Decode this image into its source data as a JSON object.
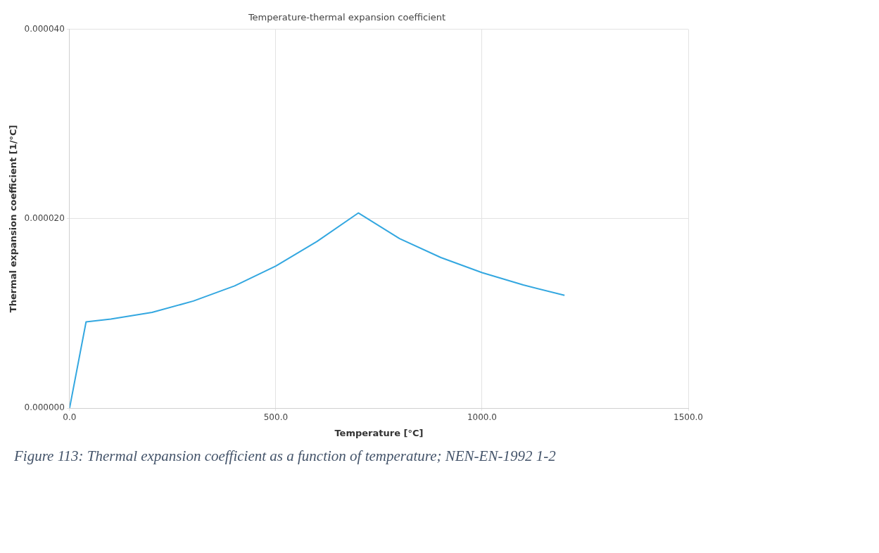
{
  "chart_data": {
    "type": "line",
    "title": "Temperature-thermal expansion coefficient",
    "xlabel": "Temperature [°C]",
    "ylabel": "Thermal expansion coefficient [1/°C]",
    "annotations": [
      "Figure 113: Thermal expansion coefficient as a function of temperature; NEN-EN-1992 1-2"
    ],
    "x": [
      0,
      40,
      100,
      200,
      300,
      400,
      500,
      600,
      700,
      800,
      900,
      1000,
      1100,
      1200
    ],
    "series": [
      {
        "color": "#33a7e0",
        "values": [
          0,
          9.1e-06,
          9.4e-06,
          1.01e-05,
          1.13e-05,
          1.29e-05,
          1.5e-05,
          1.76e-05,
          2.06e-05,
          1.79e-05,
          1.59e-05,
          1.43e-05,
          1.3e-05,
          1.19e-05
        ]
      }
    ],
    "xlim": [
      0,
      1500
    ],
    "xticks": [
      {
        "value": 0,
        "label": "0.0"
      },
      {
        "value": 500,
        "label": "500.0"
      },
      {
        "value": 1000,
        "label": "1000.0"
      },
      {
        "value": 1500,
        "label": "1500.0"
      }
    ],
    "ylim": [
      0,
      4e-05
    ],
    "yticks": [
      {
        "value": 0,
        "label": "0.000000"
      },
      {
        "value": 2e-05,
        "label": "0.000020"
      },
      {
        "value": 4e-05,
        "label": "0.000040"
      }
    ],
    "grid": true,
    "legend": false,
    "marker": "none",
    "line_style": "solid"
  }
}
